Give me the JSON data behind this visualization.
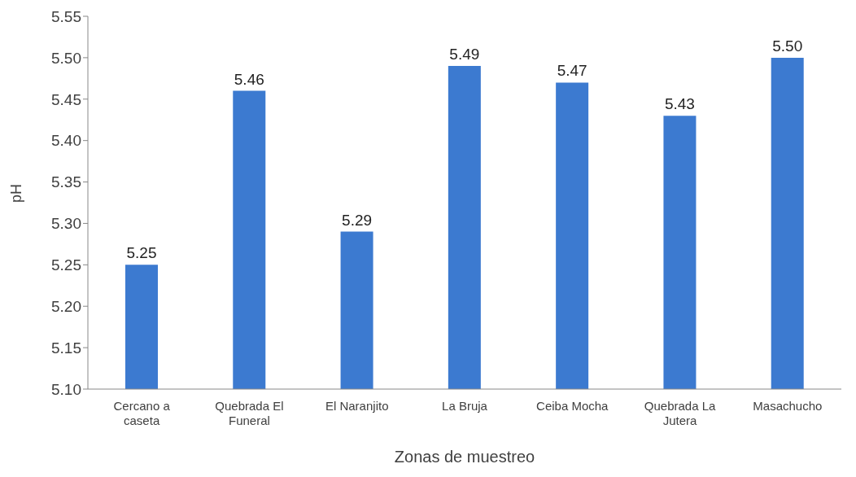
{
  "chart_data": {
    "type": "bar",
    "xlabel": "Zonas de muestreo",
    "ylabel": "pH",
    "categories": [
      "Cercano a caseta",
      "Quebrada El Funeral",
      "El Naranjito",
      "La Bruja",
      "Ceiba Mocha",
      "Quebrada La Jutera",
      "Masachucho"
    ],
    "values": [
      5.25,
      5.46,
      5.29,
      5.49,
      5.47,
      5.43,
      5.5
    ],
    "value_labels": [
      "5.25",
      "5.46",
      "5.29",
      "5.49",
      "5.47",
      "5.43",
      "5.50"
    ],
    "color": "#3c7ad0",
    "ylim": [
      5.1,
      5.55
    ],
    "yticks": [
      {
        "value": 5.1,
        "label": "5.10"
      },
      {
        "value": 5.15,
        "label": "5.15"
      },
      {
        "value": 5.2,
        "label": "5.20"
      },
      {
        "value": 5.25,
        "label": "5.25"
      },
      {
        "value": 5.3,
        "label": "5.30"
      },
      {
        "value": 5.35,
        "label": "5.35"
      },
      {
        "value": 5.4,
        "label": "5.40"
      },
      {
        "value": 5.45,
        "label": "5.45"
      },
      {
        "value": 5.5,
        "label": "5.50"
      },
      {
        "value": 5.55,
        "label": "5.55"
      }
    ],
    "grid": false,
    "legend": false
  }
}
